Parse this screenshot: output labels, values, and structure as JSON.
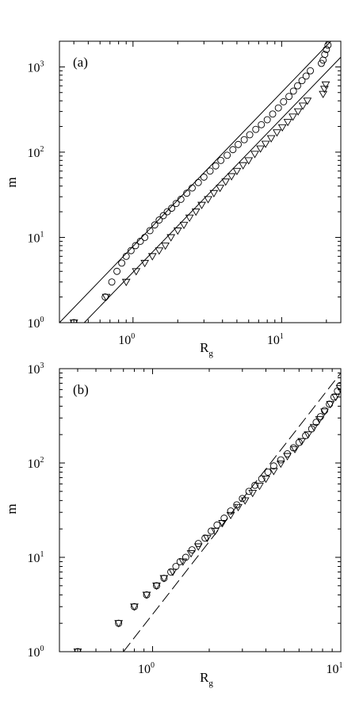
{
  "chart_data": [
    {
      "type": "scatter",
      "panel_label": "(a)",
      "xlabel": "R",
      "xlabel_sub": "g",
      "ylabel": "m",
      "xscale": "log",
      "yscale": "log",
      "xlim": [
        0.32,
        25
      ],
      "ylim": [
        1,
        2000
      ],
      "x_ticks": [
        {
          "base": "10",
          "exp": "0",
          "value": 1
        },
        {
          "base": "10",
          "exp": "1",
          "value": 10
        }
      ],
      "y_ticks": [
        {
          "base": "10",
          "exp": "0",
          "value": 1
        },
        {
          "base": "10",
          "exp": "1",
          "value": 10
        },
        {
          "base": "10",
          "exp": "2",
          "value": 100
        },
        {
          "base": "10",
          "exp": "3",
          "value": 1000
        }
      ],
      "grid": false,
      "series": [
        {
          "marker": "circle",
          "x": [
            0.4,
            0.65,
            0.72,
            0.78,
            0.84,
            0.9,
            0.97,
            1.04,
            1.12,
            1.2,
            1.3,
            1.4,
            1.5,
            1.6,
            1.7,
            1.82,
            1.95,
            2.1,
            2.3,
            2.5,
            2.75,
            3.0,
            3.3,
            3.6,
            3.9,
            4.3,
            4.7,
            5.1,
            5.6,
            6.1,
            6.7,
            7.3,
            8.0,
            8.7,
            9.5,
            10.3,
            11.2,
            12.0,
            12.8,
            13.7,
            14.6,
            15.6,
            18.5,
            19.0,
            19.5,
            20.0,
            20.5
          ],
          "y": [
            1,
            2,
            3,
            4,
            5,
            6,
            7,
            8,
            9,
            10,
            12,
            14,
            16,
            18,
            20,
            22,
            25,
            28,
            33,
            38,
            44,
            51,
            60,
            69,
            80,
            92,
            107,
            123,
            140,
            160,
            185,
            210,
            240,
            280,
            330,
            390,
            450,
            520,
            600,
            690,
            780,
            900,
            1100,
            1200,
            1400,
            1600,
            1800
          ]
        },
        {
          "marker": "triangle-down",
          "x": [
            0.4,
            0.66,
            0.9,
            1.05,
            1.2,
            1.35,
            1.5,
            1.65,
            1.8,
            2.0,
            2.2,
            2.4,
            2.65,
            2.9,
            3.2,
            3.5,
            3.85,
            4.2,
            4.6,
            5.0,
            5.5,
            6.0,
            6.6,
            7.2,
            7.8,
            8.5,
            9.3,
            10.1,
            11.0,
            11.9,
            12.9,
            13.9,
            14.9,
            19.0,
            19.4,
            19.8
          ],
          "y": [
            1,
            2,
            3,
            4,
            5,
            6,
            7,
            8,
            10,
            12,
            14,
            17,
            20,
            24,
            28,
            33,
            38,
            45,
            52,
            60,
            70,
            80,
            95,
            110,
            125,
            145,
            170,
            195,
            225,
            260,
            300,
            350,
            400,
            480,
            550,
            620
          ]
        }
      ],
      "fit_lines": [
        {
          "style": "solid",
          "x": [
            0.32,
            22
          ],
          "y": [
            1,
            2100
          ]
        },
        {
          "style": "solid",
          "x": [
            0.47,
            25
          ],
          "y": [
            1,
            1300
          ]
        }
      ]
    },
    {
      "type": "scatter",
      "panel_label": "(b)",
      "xlabel": "R",
      "xlabel_sub": "g",
      "ylabel": "m",
      "xscale": "log",
      "yscale": "log",
      "xlim": [
        0.32,
        10
      ],
      "ylim": [
        1,
        1000
      ],
      "x_ticks": [
        {
          "base": "10",
          "exp": "0",
          "value": 1
        },
        {
          "base": "10",
          "exp": "1",
          "value": 10
        }
      ],
      "y_ticks": [
        {
          "base": "10",
          "exp": "0",
          "value": 1
        },
        {
          "base": "10",
          "exp": "1",
          "value": 10
        },
        {
          "base": "10",
          "exp": "2",
          "value": 100
        },
        {
          "base": "10",
          "exp": "3",
          "value": 1000
        }
      ],
      "grid": false,
      "series": [
        {
          "marker": "circle",
          "x": [
            0.4,
            0.66,
            0.8,
            0.93,
            1.05,
            1.15,
            1.25,
            1.33,
            1.4,
            1.5,
            1.62,
            1.75,
            1.9,
            2.05,
            2.2,
            2.4,
            2.6,
            2.8,
            3.0,
            3.25,
            3.5,
            3.8,
            4.1,
            4.4,
            4.8,
            5.2,
            5.6,
            6.0,
            6.5,
            7.0,
            7.4,
            7.8,
            8.2,
            8.7,
            9.2,
            9.6,
            9.9
          ],
          "y": [
            1,
            2,
            3,
            4,
            5,
            6,
            7,
            8,
            9,
            10,
            12,
            14,
            16,
            19,
            22,
            26,
            31,
            36,
            42,
            50,
            58,
            68,
            80,
            93,
            108,
            125,
            145,
            165,
            195,
            230,
            270,
            310,
            360,
            420,
            500,
            580,
            660
          ]
        },
        {
          "marker": "triangle-down",
          "x": [
            0.4,
            0.66,
            0.8,
            0.93,
            1.05,
            1.15,
            1.28,
            1.45,
            1.6,
            1.75,
            1.95,
            2.15,
            2.35,
            2.6,
            2.85,
            3.1,
            3.4,
            3.7,
            4.0,
            4.4,
            4.8,
            5.2,
            5.7,
            6.2,
            6.7,
            7.2,
            7.7,
            8.2,
            8.8,
            9.4,
            9.9
          ],
          "y": [
            1,
            2,
            3,
            4,
            5,
            6,
            7,
            9,
            11,
            13,
            16,
            19,
            23,
            28,
            34,
            40,
            48,
            57,
            68,
            82,
            98,
            118,
            140,
            170,
            200,
            240,
            290,
            350,
            420,
            500,
            620
          ]
        }
      ],
      "fit_lines": [
        {
          "style": "dashed",
          "x": [
            0.7,
            10
          ],
          "y": [
            1,
            900
          ]
        }
      ]
    }
  ]
}
